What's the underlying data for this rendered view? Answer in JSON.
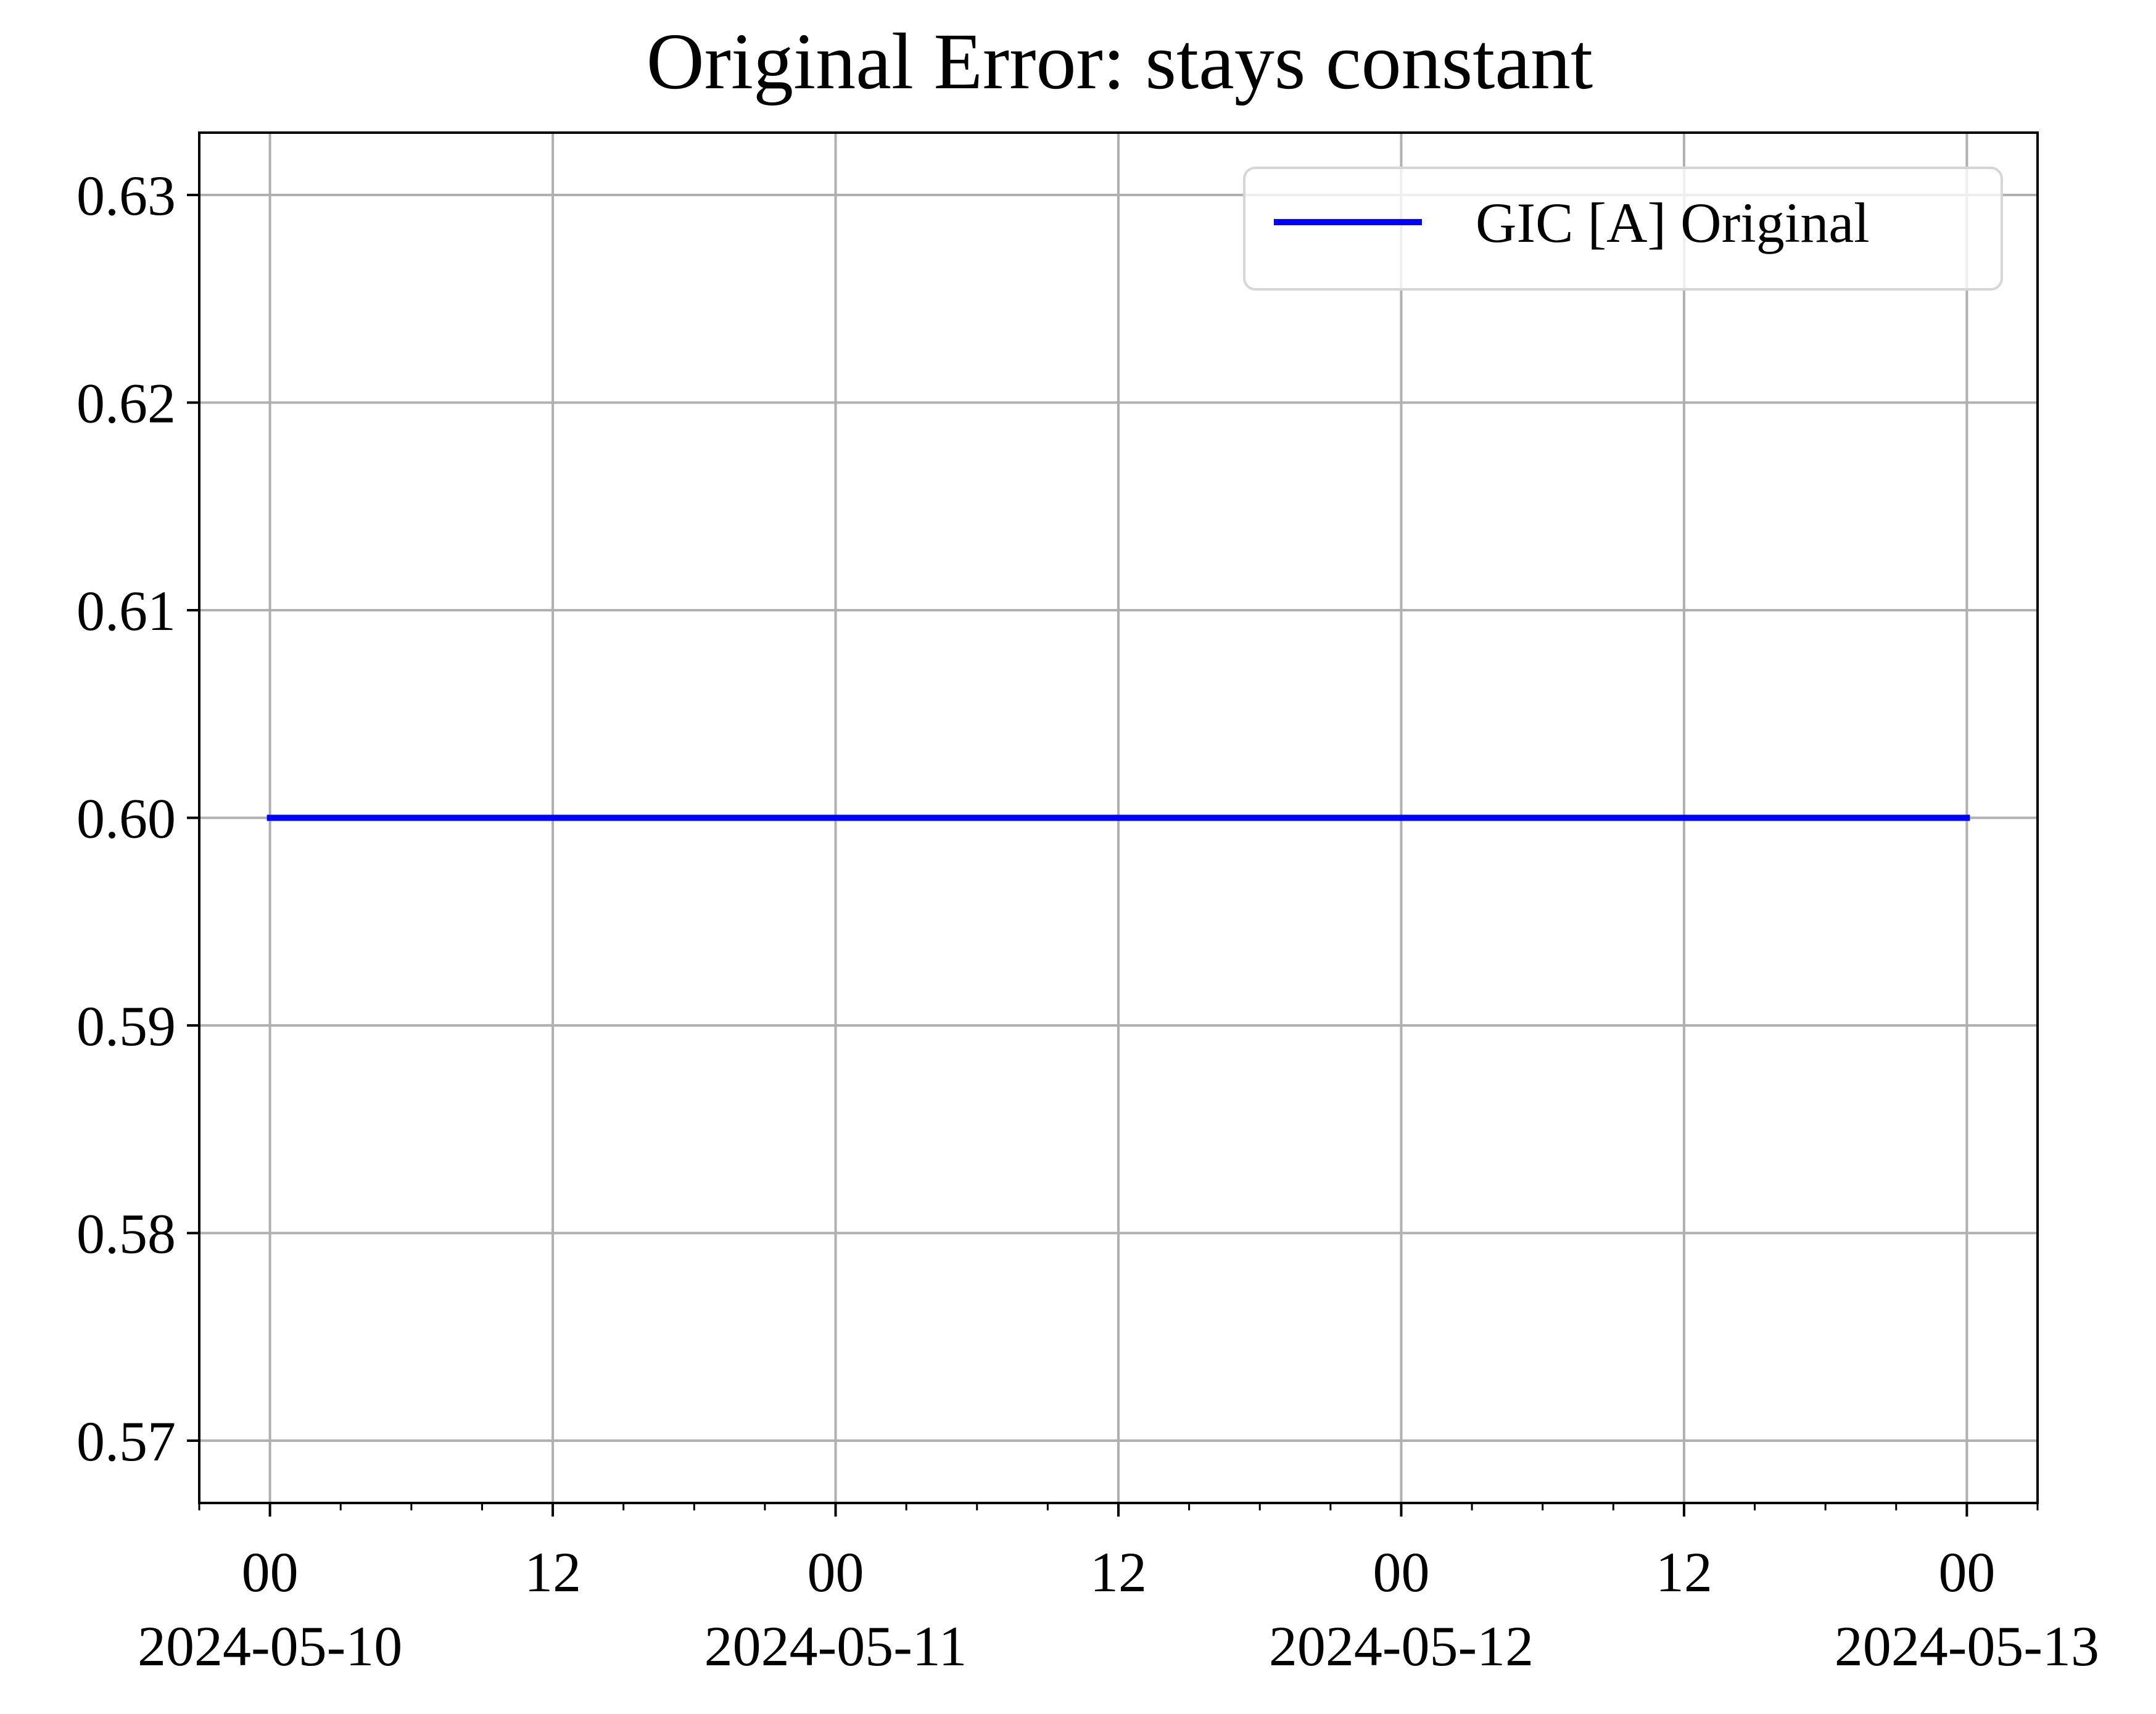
{
  "chart_data": {
    "type": "line",
    "title": "Original Error: stays constant",
    "xlabel": "",
    "ylabel": "",
    "x_range": [
      "2024-05-09 21:00",
      "2024-05-13 03:00"
    ],
    "ylim": [
      0.567,
      0.633
    ],
    "y_ticks": [
      "0.57",
      "0.58",
      "0.59",
      "0.60",
      "0.61",
      "0.62",
      "0.63"
    ],
    "x_ticks": [
      {
        "value": "2024-05-10 00:00",
        "hour": "00",
        "date": "2024-05-10"
      },
      {
        "value": "2024-05-10 12:00",
        "hour": "12",
        "date": ""
      },
      {
        "value": "2024-05-11 00:00",
        "hour": "00",
        "date": "2024-05-11"
      },
      {
        "value": "2024-05-11 12:00",
        "hour": "12",
        "date": ""
      },
      {
        "value": "2024-05-12 00:00",
        "hour": "00",
        "date": "2024-05-12"
      },
      {
        "value": "2024-05-12 12:00",
        "hour": "12",
        "date": ""
      },
      {
        "value": "2024-05-13 00:00",
        "hour": "00",
        "date": "2024-05-13"
      }
    ],
    "grid": true,
    "legend_position": "top-right",
    "series": [
      {
        "name": "GIC [A] Original",
        "color": "#0000ff",
        "x": [
          "2024-05-10 00:00",
          "2024-05-13 00:00"
        ],
        "y": [
          0.6,
          0.6
        ]
      }
    ]
  }
}
